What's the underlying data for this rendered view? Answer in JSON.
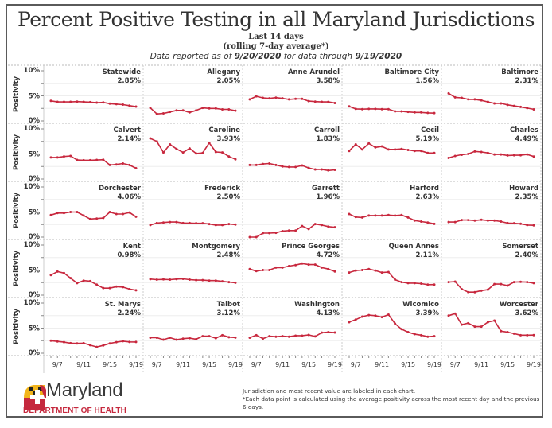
{
  "header": {
    "title": "Percent Positive Testing in all Maryland Jurisdictions",
    "subtitle_line1": "Last 14 days",
    "subtitle_line2": "(rolling 7-day average*)",
    "reported_prefix": "Data reported as of ",
    "reported_date": "9/20/2020",
    "reported_middle": " for data through ",
    "through_date": "9/19/2020"
  },
  "footer": {
    "logo_word": "Maryland",
    "logo_dept": "DEPARTMENT OF HEALTH",
    "note_line1": "Jurisdiction and most recent value are labeled in each chart.",
    "note_line2": "*Each data point is calculated using the average positivity across the most recent day and the previous 6 days."
  },
  "colors": {
    "line": "#c8283e",
    "grid": "#d8d8d8",
    "text": "#333333",
    "logo_red": "#c5283d",
    "logo_yellow": "#f2b51b",
    "logo_black": "#222222"
  },
  "chart_data": {
    "type": "line",
    "layout": "small-multiples 5x5",
    "title": "Percent Positive Testing in all Maryland Jurisdictions",
    "ylabel": "Positivity",
    "ylim": [
      0,
      10
    ],
    "yticks": [
      "0%",
      "5%",
      "10%"
    ],
    "x": [
      "9/6",
      "9/7",
      "9/8",
      "9/9",
      "9/10",
      "9/11",
      "9/12",
      "9/13",
      "9/14",
      "9/15",
      "9/16",
      "9/17",
      "9/18",
      "9/19"
    ],
    "xtick_labels": [
      "9/7",
      "9/11",
      "9/15",
      "9/19"
    ],
    "grid": true,
    "series": [
      {
        "name": "Statewide",
        "label": "2.85%",
        "values": [
          4.0,
          3.8,
          3.8,
          3.8,
          3.85,
          3.8,
          3.75,
          3.65,
          3.7,
          3.45,
          3.35,
          3.25,
          3.05,
          2.85
        ]
      },
      {
        "name": "Allegany",
        "label": "2.05%",
        "values": [
          2.6,
          1.4,
          1.5,
          1.8,
          2.1,
          2.1,
          1.7,
          2.1,
          2.6,
          2.5,
          2.5,
          2.3,
          2.3,
          2.05
        ]
      },
      {
        "name": "Anne Arundel",
        "label": "3.58%",
        "values": [
          4.3,
          4.9,
          4.6,
          4.5,
          4.65,
          4.5,
          4.3,
          4.4,
          4.4,
          3.95,
          3.85,
          3.8,
          3.8,
          3.58
        ]
      },
      {
        "name": "Baltimore City",
        "label": "1.56%",
        "values": [
          2.9,
          2.4,
          2.35,
          2.4,
          2.4,
          2.35,
          2.35,
          1.9,
          1.9,
          1.8,
          1.7,
          1.7,
          1.6,
          1.56
        ]
      },
      {
        "name": "Baltimore",
        "label": "2.31%",
        "values": [
          5.5,
          4.7,
          4.6,
          4.3,
          4.3,
          4.1,
          3.8,
          3.5,
          3.5,
          3.2,
          3.0,
          2.8,
          2.55,
          2.31
        ]
      },
      {
        "name": "Calvert",
        "label": "2.14%",
        "values": [
          4.3,
          4.3,
          4.5,
          4.6,
          3.8,
          3.75,
          3.75,
          3.8,
          3.85,
          2.8,
          2.9,
          3.1,
          2.8,
          2.14
        ]
      },
      {
        "name": "Caroline",
        "label": "3.93%",
        "values": [
          8.1,
          7.5,
          5.3,
          6.9,
          6.0,
          5.3,
          6.1,
          5.1,
          5.2,
          7.2,
          5.4,
          5.3,
          4.5,
          3.93
        ]
      },
      {
        "name": "Carroll",
        "label": "1.83%",
        "values": [
          2.8,
          2.8,
          3.0,
          3.1,
          2.8,
          2.5,
          2.4,
          2.4,
          2.7,
          2.2,
          1.9,
          1.9,
          1.7,
          1.83
        ]
      },
      {
        "name": "Cecil",
        "label": "5.19%",
        "values": [
          5.6,
          6.9,
          5.9,
          7.1,
          6.3,
          6.5,
          5.9,
          5.9,
          6.0,
          5.8,
          5.6,
          5.6,
          5.2,
          5.19
        ]
      },
      {
        "name": "Charles",
        "label": "4.49%",
        "values": [
          4.2,
          4.6,
          4.85,
          5.0,
          5.5,
          5.4,
          5.2,
          4.9,
          4.9,
          4.7,
          4.75,
          4.75,
          4.9,
          4.49
        ]
      },
      {
        "name": "Dorchester",
        "label": "4.06%",
        "values": [
          4.4,
          4.8,
          4.8,
          5.0,
          5.0,
          4.3,
          3.6,
          3.7,
          3.8,
          5.0,
          4.6,
          4.6,
          4.9,
          4.06
        ]
      },
      {
        "name": "Frederick",
        "label": "2.50%",
        "values": [
          2.4,
          2.8,
          2.9,
          3.0,
          3.0,
          2.8,
          2.8,
          2.75,
          2.75,
          2.6,
          2.4,
          2.4,
          2.6,
          2.5
        ]
      },
      {
        "name": "Garrett",
        "label": "1.96%",
        "values": [
          0.0,
          0.0,
          0.8,
          0.8,
          0.85,
          1.2,
          1.3,
          1.3,
          2.2,
          1.6,
          2.6,
          2.4,
          2.1,
          1.96
        ]
      },
      {
        "name": "Harford",
        "label": "2.63%",
        "values": [
          4.6,
          4.0,
          3.9,
          4.3,
          4.3,
          4.3,
          4.4,
          4.3,
          4.4,
          3.9,
          3.3,
          3.1,
          2.9,
          2.63
        ]
      },
      {
        "name": "Howard",
        "label": "2.35%",
        "values": [
          3.0,
          3.0,
          3.4,
          3.4,
          3.3,
          3.45,
          3.3,
          3.3,
          3.1,
          2.8,
          2.75,
          2.65,
          2.4,
          2.35
        ]
      },
      {
        "name": "Kent",
        "label": "0.98%",
        "values": [
          4.0,
          4.7,
          4.4,
          3.4,
          2.4,
          2.9,
          2.8,
          2.1,
          1.4,
          1.4,
          1.7,
          1.6,
          1.2,
          0.98
        ]
      },
      {
        "name": "Montgomery",
        "label": "2.48%",
        "values": [
          3.2,
          3.1,
          3.15,
          3.1,
          3.2,
          3.25,
          3.1,
          3.0,
          3.0,
          2.9,
          2.9,
          2.75,
          2.6,
          2.48
        ]
      },
      {
        "name": "Prince Georges",
        "label": "4.72%",
        "values": [
          5.2,
          4.8,
          5.0,
          5.0,
          5.5,
          5.5,
          5.8,
          6.0,
          6.3,
          6.1,
          6.1,
          5.5,
          5.2,
          4.72
        ]
      },
      {
        "name": "Queen Annes",
        "label": "2.11%",
        "values": [
          4.5,
          4.9,
          5.0,
          5.2,
          4.9,
          4.5,
          4.6,
          3.1,
          2.6,
          2.4,
          2.4,
          2.3,
          2.1,
          2.11
        ]
      },
      {
        "name": "Somerset",
        "label": "2.40%",
        "values": [
          2.6,
          2.7,
          1.2,
          0.6,
          0.6,
          0.9,
          1.1,
          2.2,
          2.2,
          1.9,
          2.6,
          2.65,
          2.6,
          2.4
        ]
      },
      {
        "name": "St. Marys",
        "label": "2.24%",
        "values": [
          2.5,
          2.35,
          2.2,
          2.0,
          1.95,
          2.0,
          1.6,
          1.25,
          1.55,
          1.95,
          2.2,
          2.4,
          2.25,
          2.24
        ]
      },
      {
        "name": "Talbot",
        "label": "3.12%",
        "values": [
          3.1,
          3.1,
          2.7,
          3.1,
          2.7,
          2.9,
          3.0,
          2.8,
          3.4,
          3.4,
          3.0,
          3.6,
          3.2,
          3.12
        ]
      },
      {
        "name": "Washington",
        "label": "4.13%",
        "values": [
          3.1,
          3.6,
          2.9,
          3.4,
          3.3,
          3.4,
          3.3,
          3.5,
          3.5,
          3.65,
          3.35,
          4.1,
          4.2,
          4.13
        ]
      },
      {
        "name": "Wicomico",
        "label": "3.39%",
        "values": [
          6.2,
          6.7,
          7.3,
          7.6,
          7.5,
          7.2,
          7.7,
          5.9,
          4.8,
          4.2,
          3.8,
          3.6,
          3.3,
          3.39
        ]
      },
      {
        "name": "Worcester",
        "label": "3.62%",
        "values": [
          7.5,
          7.9,
          5.7,
          6.0,
          5.3,
          5.3,
          6.2,
          6.5,
          4.4,
          4.2,
          3.9,
          3.6,
          3.6,
          3.62
        ]
      }
    ]
  }
}
